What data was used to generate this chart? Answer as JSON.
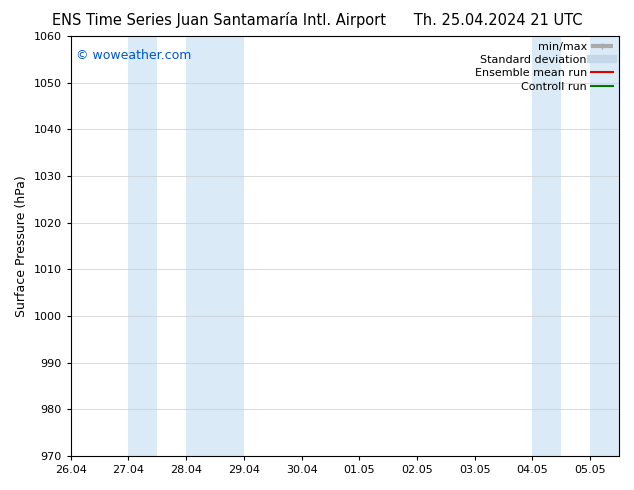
{
  "title_left": "ENS Time Series Juan Santamaría Intl. Airport",
  "title_right": "Th. 25.04.2024 21 UTC",
  "ylabel": "Surface Pressure (hPa)",
  "watermark": "© woweather.com",
  "watermark_color": "#0055cc",
  "ylim": [
    970,
    1060
  ],
  "yticks": [
    970,
    980,
    990,
    1000,
    1010,
    1020,
    1030,
    1040,
    1050,
    1060
  ],
  "xtick_labels": [
    "26.04",
    "27.04",
    "28.04",
    "29.04",
    "30.04",
    "01.05",
    "02.05",
    "03.05",
    "04.05",
    "05.05"
  ],
  "xtick_positions": [
    0,
    1,
    2,
    3,
    4,
    5,
    6,
    7,
    8,
    9
  ],
  "xlim": [
    0,
    9.5
  ],
  "shaded_bands": [
    {
      "x_start": 1.0,
      "x_end": 1.5,
      "color": "#daeaf7"
    },
    {
      "x_start": 2.0,
      "x_end": 3.0,
      "color": "#daeaf7"
    },
    {
      "x_start": 8.0,
      "x_end": 8.5,
      "color": "#daeaf7"
    },
    {
      "x_start": 9.0,
      "x_end": 9.5,
      "color": "#daeaf7"
    }
  ],
  "legend_items": [
    {
      "label": "min/max",
      "color": "#aaaaaa",
      "lw": 3,
      "style": "solid",
      "type": "minmax"
    },
    {
      "label": "Standard deviation",
      "color": "#c5d8ea",
      "lw": 6,
      "style": "solid",
      "type": "band"
    },
    {
      "label": "Ensemble mean run",
      "color": "#dd0000",
      "lw": 1.5,
      "style": "solid",
      "type": "line"
    },
    {
      "label": "Controll run",
      "color": "#007700",
      "lw": 1.5,
      "style": "solid",
      "type": "line"
    }
  ],
  "bg_color": "#ffffff",
  "plot_bg_color": "#ffffff",
  "grid_color": "#cccccc",
  "spine_color": "#000000",
  "tick_color": "#000000",
  "title_fontsize": 10.5,
  "axis_label_fontsize": 9,
  "tick_fontsize": 8,
  "legend_fontsize": 8,
  "watermark_fontsize": 9
}
